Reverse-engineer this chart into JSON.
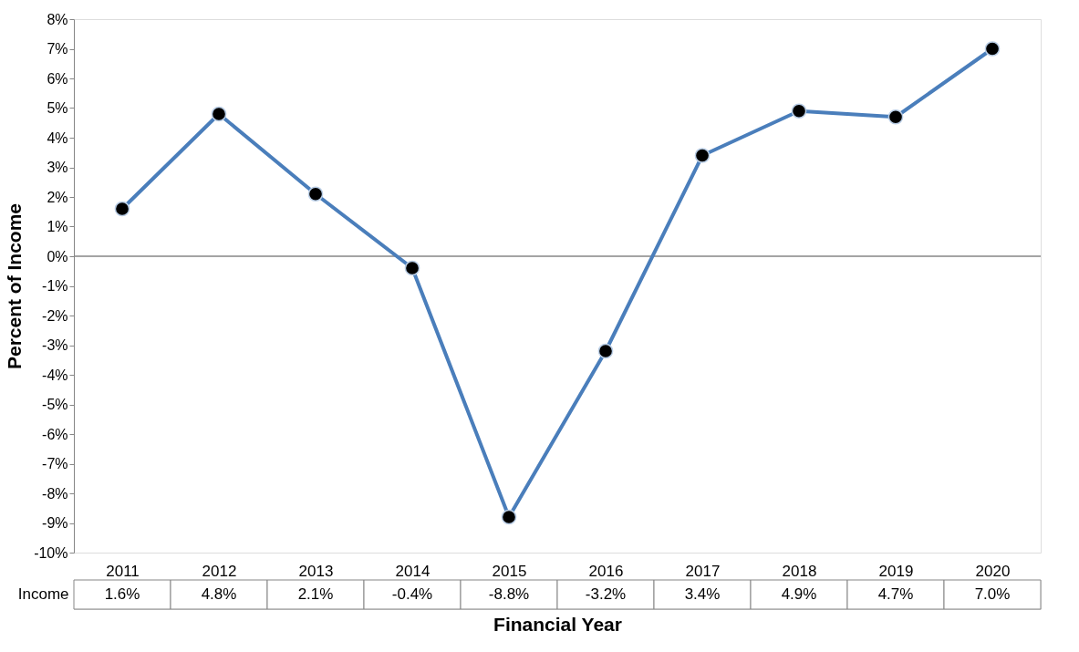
{
  "chart_data": {
    "type": "line",
    "xlabel": "Financial Year",
    "ylabel": "Percent of Income",
    "categories": [
      "2011",
      "2012",
      "2013",
      "2014",
      "2015",
      "2016",
      "2017",
      "2018",
      "2019",
      "2020"
    ],
    "series": [
      {
        "name": "Income",
        "color": "#4a7ebb",
        "values": [
          1.6,
          4.8,
          2.1,
          -0.4,
          -8.8,
          -3.2,
          3.4,
          4.9,
          4.7,
          7.0
        ],
        "value_labels": [
          "1.6%",
          "4.8%",
          "2.1%",
          "-0.4%",
          "-8.8%",
          "-3.2%",
          "3.4%",
          "4.9%",
          "4.7%",
          "7.0%"
        ]
      }
    ],
    "ylim": [
      -10,
      8
    ],
    "yticks": [
      {
        "value": -10,
        "label": "-10%"
      },
      {
        "value": -9,
        "label": "-9%"
      },
      {
        "value": -8,
        "label": "-8%"
      },
      {
        "value": -7,
        "label": "-7%"
      },
      {
        "value": -6,
        "label": "-6%"
      },
      {
        "value": -5,
        "label": "-5%"
      },
      {
        "value": -4,
        "label": "-4%"
      },
      {
        "value": -3,
        "label": "-3%"
      },
      {
        "value": -2,
        "label": "-2%"
      },
      {
        "value": -1,
        "label": "-1%"
      },
      {
        "value": 0,
        "label": "0%"
      },
      {
        "value": 1,
        "label": "1%"
      },
      {
        "value": 2,
        "label": "2%"
      },
      {
        "value": 3,
        "label": "3%"
      },
      {
        "value": 4,
        "label": "4%"
      },
      {
        "value": 5,
        "label": "5%"
      },
      {
        "value": 6,
        "label": "6%"
      },
      {
        "value": 7,
        "label": "7%"
      },
      {
        "value": 8,
        "label": "8%"
      }
    ],
    "ref_lines": [
      {
        "axis": "y",
        "value": 0,
        "color": "#868686"
      }
    ],
    "marker": "circle",
    "line_style": "solid",
    "grid": false
  }
}
